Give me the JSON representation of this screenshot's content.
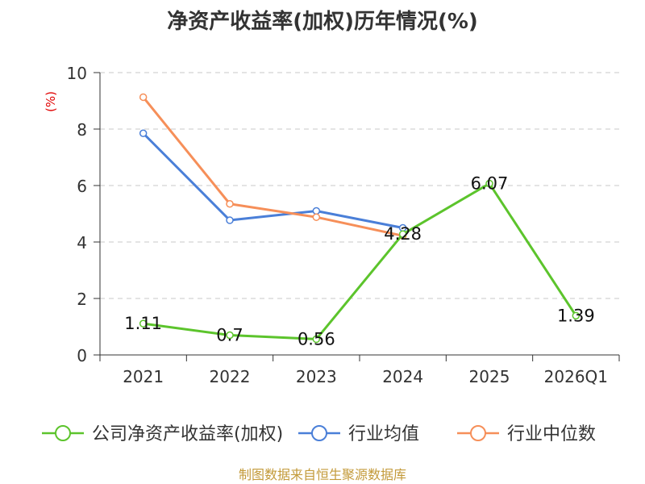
{
  "chart_data": {
    "type": "line",
    "title": "净资产收益率(加权)历年情况(%)",
    "ylabel": "(%)",
    "xlabel": "",
    "ylim": [
      0,
      10
    ],
    "yticks": [
      0,
      2,
      4,
      6,
      8,
      10
    ],
    "grid": true,
    "categories": [
      "2021",
      "2022",
      "2023",
      "2024",
      "2025",
      "2026Q1"
    ],
    "series": [
      {
        "name": "公司净资产收益率(加权)",
        "color": "#5cc42c",
        "values": [
          1.11,
          0.7,
          0.56,
          4.28,
          6.07,
          1.39
        ],
        "labels": [
          "1.11",
          "0.7",
          "0.56",
          "4.28",
          "6.07",
          "1.39"
        ]
      },
      {
        "name": "行业均值",
        "color": "#4a7fd8",
        "values": [
          7.85,
          4.77,
          5.1,
          4.5,
          null,
          null
        ]
      },
      {
        "name": "行业中位数",
        "color": "#f68f59",
        "values": [
          9.13,
          5.35,
          4.88,
          4.22,
          null,
          null
        ]
      }
    ],
    "legend_position": "bottom",
    "source": "制图数据来自恒生聚源数据库"
  }
}
